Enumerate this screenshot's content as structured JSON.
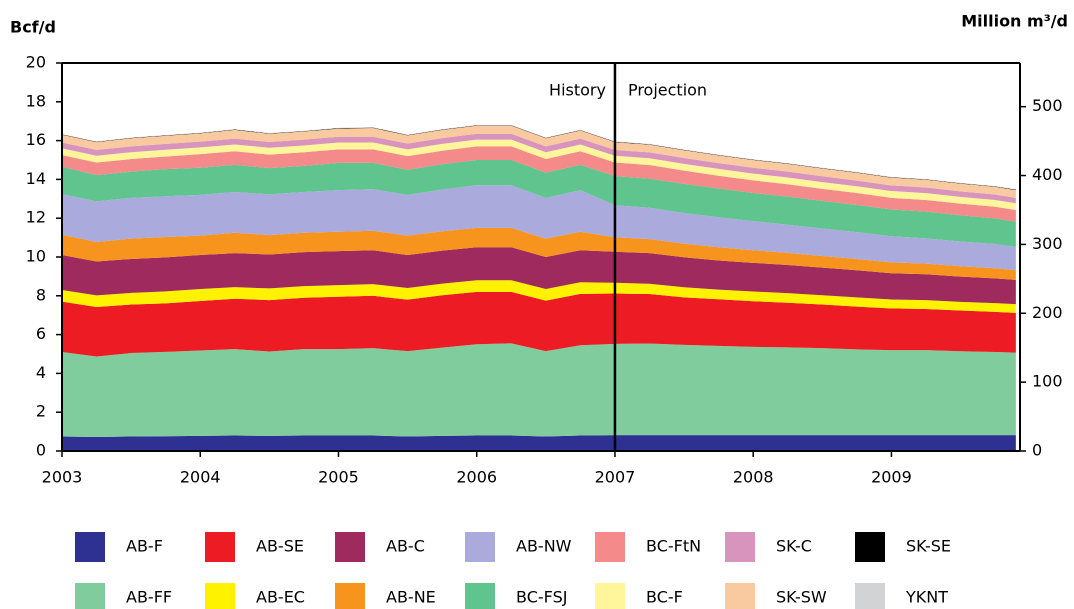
{
  "chart_data": {
    "type": "stacked_area",
    "y_label": "Bcf/d",
    "y2_label": "Million m³/d",
    "annotations": [
      "History",
      "Projection"
    ],
    "projection_start": 2007,
    "x": [
      2003,
      2003.25,
      2003.5,
      2003.75,
      2004,
      2004.25,
      2004.5,
      2004.75,
      2005,
      2005.25,
      2005.5,
      2005.75,
      2006,
      2006.25,
      2006.5,
      2006.75,
      2007,
      2007.25,
      2007.5,
      2007.75,
      2008,
      2008.25,
      2008.5,
      2008.75,
      2009,
      2009.25,
      2009.5,
      2009.75,
      2009.9
    ],
    "xlim": [
      2003,
      2009.93
    ],
    "xticks": [
      2003,
      2004,
      2005,
      2006,
      2007,
      2008,
      2009
    ],
    "ylim": [
      0,
      20
    ],
    "yticks": [
      0,
      2,
      4,
      6,
      8,
      10,
      12,
      14,
      16,
      18,
      20
    ],
    "y2lim": [
      0,
      563.4
    ],
    "y2ticks": [
      0,
      100,
      200,
      300,
      400,
      500
    ],
    "series": [
      {
        "name": "AB-F",
        "color": "#2e3192",
        "values": [
          0.75,
          0.72,
          0.75,
          0.76,
          0.78,
          0.8,
          0.78,
          0.8,
          0.8,
          0.8,
          0.75,
          0.78,
          0.8,
          0.8,
          0.75,
          0.8,
          0.82,
          0.82,
          0.82,
          0.82,
          0.82,
          0.82,
          0.82,
          0.82,
          0.82,
          0.82,
          0.82,
          0.82,
          0.82
        ]
      },
      {
        "name": "AB-FF",
        "color": "#80cc9c",
        "values": [
          4.35,
          4.15,
          4.3,
          4.35,
          4.4,
          4.45,
          4.35,
          4.45,
          4.45,
          4.5,
          4.4,
          4.55,
          4.7,
          4.75,
          4.4,
          4.65,
          4.7,
          4.72,
          4.65,
          4.6,
          4.55,
          4.52,
          4.48,
          4.42,
          4.38,
          4.38,
          4.32,
          4.28,
          4.25
        ]
      },
      {
        "name": "AB-SE",
        "color": "#ed1c24",
        "values": [
          2.6,
          2.55,
          2.5,
          2.5,
          2.55,
          2.6,
          2.65,
          2.65,
          2.7,
          2.7,
          2.65,
          2.7,
          2.7,
          2.65,
          2.6,
          2.65,
          2.6,
          2.55,
          2.45,
          2.4,
          2.35,
          2.3,
          2.25,
          2.2,
          2.15,
          2.12,
          2.1,
          2.07,
          2.05
        ]
      },
      {
        "name": "AB-EC",
        "color": "#fff200",
        "values": [
          0.6,
          0.6,
          0.6,
          0.62,
          0.62,
          0.6,
          0.6,
          0.6,
          0.6,
          0.6,
          0.6,
          0.6,
          0.6,
          0.6,
          0.6,
          0.6,
          0.55,
          0.53,
          0.52,
          0.5,
          0.5,
          0.5,
          0.48,
          0.48,
          0.46,
          0.46,
          0.45,
          0.45,
          0.45
        ]
      },
      {
        "name": "AB-C",
        "color": "#9e2a5e",
        "values": [
          1.8,
          1.75,
          1.75,
          1.75,
          1.75,
          1.75,
          1.75,
          1.75,
          1.75,
          1.75,
          1.7,
          1.7,
          1.7,
          1.7,
          1.65,
          1.65,
          1.6,
          1.58,
          1.55,
          1.5,
          1.48,
          1.45,
          1.42,
          1.4,
          1.35,
          1.33,
          1.3,
          1.28,
          1.25
        ]
      },
      {
        "name": "AB-NE",
        "color": "#f7941d",
        "values": [
          1.05,
          1.0,
          1.05,
          1.05,
          1.0,
          1.05,
          1.0,
          1.0,
          1.0,
          1.0,
          1.0,
          1.0,
          1.0,
          1.0,
          0.95,
          0.95,
          0.75,
          0.72,
          0.7,
          0.68,
          0.65,
          0.62,
          0.6,
          0.58,
          0.56,
          0.55,
          0.53,
          0.52,
          0.5
        ]
      },
      {
        "name": "AB-NW",
        "color": "#aaaadc",
        "values": [
          2.1,
          2.1,
          2.1,
          2.1,
          2.1,
          2.1,
          2.1,
          2.1,
          2.15,
          2.15,
          2.1,
          2.15,
          2.2,
          2.2,
          2.1,
          2.15,
          1.65,
          1.62,
          1.58,
          1.55,
          1.5,
          1.45,
          1.42,
          1.38,
          1.35,
          1.3,
          1.28,
          1.25,
          1.2
        ]
      },
      {
        "name": "BC-FSJ",
        "color": "#5fc48e",
        "values": [
          1.4,
          1.35,
          1.35,
          1.4,
          1.4,
          1.4,
          1.35,
          1.35,
          1.4,
          1.35,
          1.3,
          1.3,
          1.3,
          1.3,
          1.3,
          1.3,
          1.5,
          1.5,
          1.5,
          1.48,
          1.45,
          1.45,
          1.42,
          1.4,
          1.38,
          1.38,
          1.35,
          1.32,
          1.3
        ]
      },
      {
        "name": "BC-FtN",
        "color": "#f48a8a",
        "values": [
          0.6,
          0.65,
          0.65,
          0.65,
          0.7,
          0.7,
          0.7,
          0.7,
          0.7,
          0.7,
          0.7,
          0.7,
          0.7,
          0.7,
          0.7,
          0.7,
          0.7,
          0.7,
          0.68,
          0.66,
          0.65,
          0.64,
          0.62,
          0.62,
          0.6,
          0.6,
          0.6,
          0.6,
          0.6
        ]
      },
      {
        "name": "BC-F",
        "color": "#fff59a",
        "values": [
          0.35,
          0.35,
          0.35,
          0.35,
          0.35,
          0.35,
          0.35,
          0.35,
          0.35,
          0.35,
          0.35,
          0.35,
          0.35,
          0.35,
          0.35,
          0.35,
          0.35,
          0.35,
          0.35,
          0.35,
          0.35,
          0.35,
          0.35,
          0.35,
          0.35,
          0.35,
          0.35,
          0.35,
          0.35
        ]
      },
      {
        "name": "SK-C",
        "color": "#d894bc",
        "values": [
          0.3,
          0.3,
          0.3,
          0.3,
          0.3,
          0.3,
          0.3,
          0.3,
          0.3,
          0.3,
          0.3,
          0.3,
          0.3,
          0.3,
          0.3,
          0.3,
          0.3,
          0.3,
          0.3,
          0.3,
          0.3,
          0.3,
          0.3,
          0.29,
          0.29,
          0.29,
          0.28,
          0.28,
          0.28
        ]
      },
      {
        "name": "SK-SW",
        "color": "#f9c9a0",
        "values": [
          0.4,
          0.4,
          0.42,
          0.42,
          0.42,
          0.45,
          0.42,
          0.42,
          0.42,
          0.45,
          0.42,
          0.42,
          0.42,
          0.42,
          0.42,
          0.42,
          0.4,
          0.4,
          0.4,
          0.4,
          0.4,
          0.4,
          0.4,
          0.4,
          0.4,
          0.4,
          0.4,
          0.4,
          0.4
        ]
      },
      {
        "name": "SK-SE",
        "color": "#000000",
        "values": [
          0.02,
          0.02,
          0.02,
          0.02,
          0.02,
          0.02,
          0.02,
          0.02,
          0.02,
          0.02,
          0.02,
          0.02,
          0.02,
          0.02,
          0.02,
          0.02,
          0.02,
          0.02,
          0.02,
          0.02,
          0.02,
          0.02,
          0.02,
          0.02,
          0.02,
          0.02,
          0.02,
          0.02,
          0.02
        ]
      },
      {
        "name": "YKNT",
        "color": "#d1d3d4",
        "values": [
          0.02,
          0.02,
          0.02,
          0.02,
          0.02,
          0.02,
          0.02,
          0.02,
          0.02,
          0.02,
          0.02,
          0.02,
          0.02,
          0.02,
          0.02,
          0.02,
          0.02,
          0.02,
          0.02,
          0.02,
          0.02,
          0.02,
          0.02,
          0.02,
          0.02,
          0.02,
          0.02,
          0.02,
          0.02
        ]
      }
    ],
    "legend_order": [
      0,
      2,
      4,
      6,
      8,
      10,
      12,
      1,
      3,
      5,
      7,
      9,
      11,
      13
    ]
  }
}
